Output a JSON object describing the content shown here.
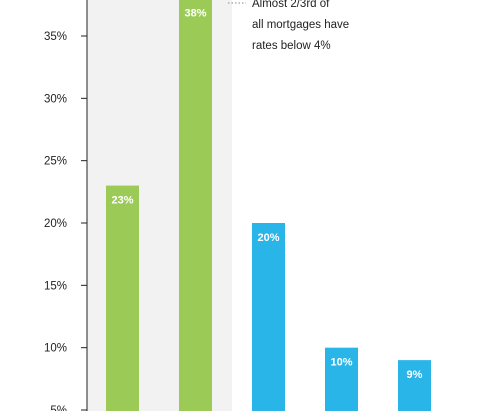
{
  "chart_data": {
    "type": "bar",
    "categories": [
      "",
      "",
      "",
      "",
      ""
    ],
    "values": [
      23,
      38,
      20,
      10,
      9
    ],
    "data_labels": [
      "23%",
      "38%",
      "20%",
      "10%",
      "9%"
    ],
    "bar_colors": [
      "#9BCB56",
      "#9BCB56",
      "#29B5E8",
      "#29B5E8",
      "#29B5E8"
    ],
    "y_ticks": [
      {
        "value": 5,
        "label": "5%"
      },
      {
        "value": 10,
        "label": "10%"
      },
      {
        "value": 15,
        "label": "15%"
      },
      {
        "value": 20,
        "label": "20%"
      },
      {
        "value": 25,
        "label": "25%"
      },
      {
        "value": 30,
        "label": "30%"
      },
      {
        "value": 35,
        "label": "35%"
      }
    ],
    "ylim": [
      5,
      38
    ],
    "highlight_span": [
      0,
      1
    ],
    "annotation": {
      "lines": [
        "Almost 2/3rd of",
        "all mortgages have",
        "rates below 4%"
      ]
    },
    "colors": {
      "highlight_bg": "#F2F2F2",
      "axis": "#222222",
      "tick_text": "#222222",
      "label_text": "#ffffff"
    },
    "title": "",
    "xlabel": "",
    "ylabel": ""
  }
}
